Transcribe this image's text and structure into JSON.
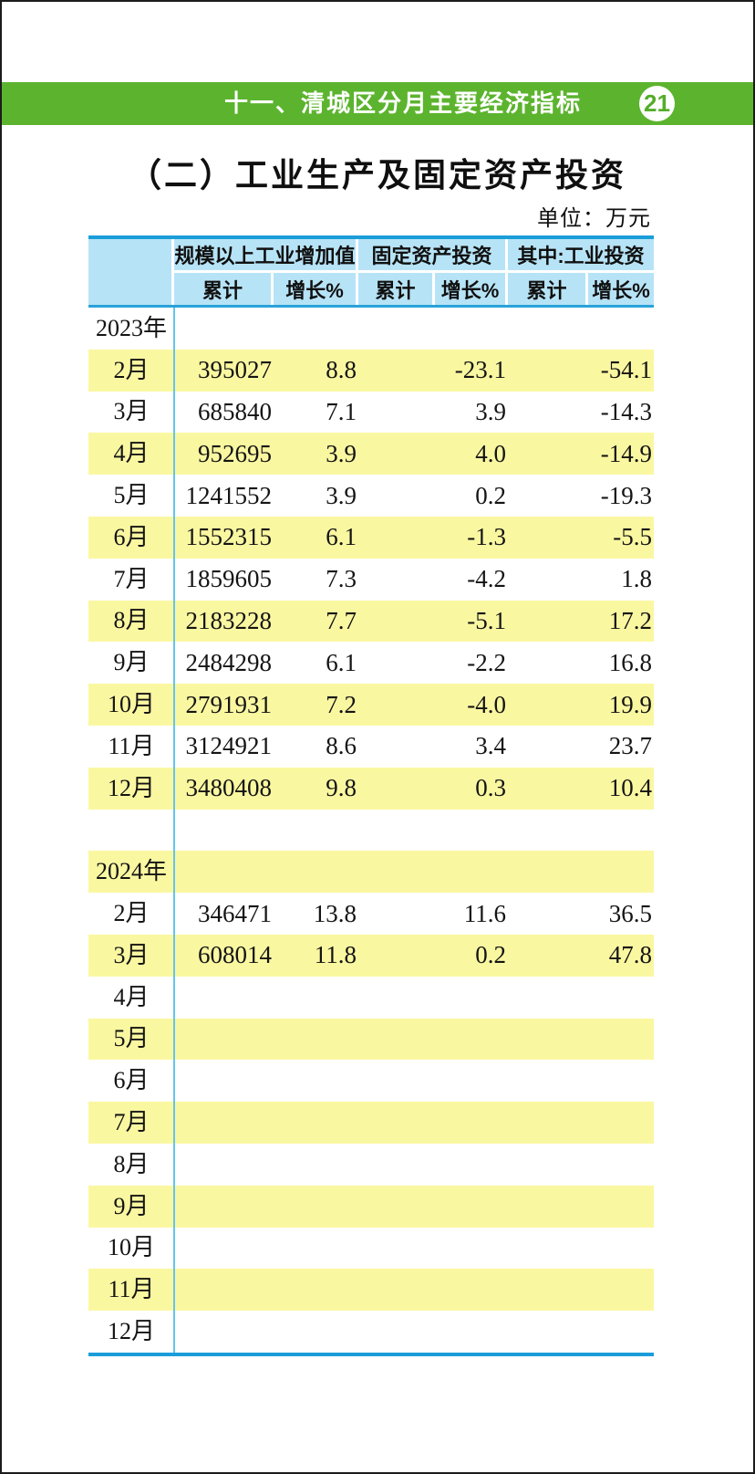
{
  "page": {
    "header_bar": {
      "title": "十一、清城区分月主要经济指标",
      "page_number": "21"
    },
    "section_title": "（二）工业生产及固定资产投资",
    "unit_label": "单位：万元",
    "colors": {
      "band_green": "#5cb42e",
      "header_blue": "#b7e3f6",
      "rule_blue": "#1b9dda",
      "divider_blue": "#63c4ee",
      "stripe_yellow": "#faf7a1"
    }
  },
  "table": {
    "column_groups": [
      {
        "label": "规模以上工业增加值",
        "sub": [
          "累计",
          "增长%"
        ]
      },
      {
        "label": "固定资产投资",
        "sub": [
          "累计",
          "增长%"
        ]
      },
      {
        "label": "其中:工业投资",
        "sub": [
          "累计",
          "增长%"
        ]
      }
    ],
    "rows": [
      {
        "label": "2023年",
        "year": true,
        "stripe": false,
        "values": [
          "",
          "",
          "",
          "",
          "",
          ""
        ]
      },
      {
        "label": "2月",
        "stripe": true,
        "values": [
          "395027",
          "8.8",
          "",
          "-23.1",
          "",
          "-54.1"
        ]
      },
      {
        "label": "3月",
        "stripe": false,
        "values": [
          "685840",
          "7.1",
          "",
          "3.9",
          "",
          "-14.3"
        ]
      },
      {
        "label": "4月",
        "stripe": true,
        "values": [
          "952695",
          "3.9",
          "",
          "4.0",
          "",
          "-14.9"
        ]
      },
      {
        "label": "5月",
        "stripe": false,
        "values": [
          "1241552",
          "3.9",
          "",
          "0.2",
          "",
          "-19.3"
        ]
      },
      {
        "label": "6月",
        "stripe": true,
        "values": [
          "1552315",
          "6.1",
          "",
          "-1.3",
          "",
          "-5.5"
        ]
      },
      {
        "label": "7月",
        "stripe": false,
        "values": [
          "1859605",
          "7.3",
          "",
          "-4.2",
          "",
          "1.8"
        ]
      },
      {
        "label": "8月",
        "stripe": true,
        "values": [
          "2183228",
          "7.7",
          "",
          "-5.1",
          "",
          "17.2"
        ]
      },
      {
        "label": "9月",
        "stripe": false,
        "values": [
          "2484298",
          "6.1",
          "",
          "-2.2",
          "",
          "16.8"
        ]
      },
      {
        "label": "10月",
        "stripe": true,
        "values": [
          "2791931",
          "7.2",
          "",
          "-4.0",
          "",
          "19.9"
        ]
      },
      {
        "label": "11月",
        "stripe": false,
        "values": [
          "3124921",
          "8.6",
          "",
          "3.4",
          "",
          "23.7"
        ]
      },
      {
        "label": "12月",
        "stripe": true,
        "values": [
          "3480408",
          "9.8",
          "",
          "0.3",
          "",
          "10.4"
        ]
      },
      {
        "label": "",
        "stripe": false,
        "values": [
          "",
          "",
          "",
          "",
          "",
          ""
        ]
      },
      {
        "label": "2024年",
        "year": true,
        "stripe": true,
        "values": [
          "",
          "",
          "",
          "",
          "",
          ""
        ]
      },
      {
        "label": "2月",
        "stripe": false,
        "values": [
          "346471",
          "13.8",
          "",
          "11.6",
          "",
          "36.5"
        ]
      },
      {
        "label": "3月",
        "stripe": true,
        "values": [
          "608014",
          "11.8",
          "",
          "0.2",
          "",
          "47.8"
        ]
      },
      {
        "label": "4月",
        "stripe": false,
        "values": [
          "",
          "",
          "",
          "",
          "",
          ""
        ]
      },
      {
        "label": "5月",
        "stripe": true,
        "values": [
          "",
          "",
          "",
          "",
          "",
          ""
        ]
      },
      {
        "label": "6月",
        "stripe": false,
        "values": [
          "",
          "",
          "",
          "",
          "",
          ""
        ]
      },
      {
        "label": "7月",
        "stripe": true,
        "values": [
          "",
          "",
          "",
          "",
          "",
          ""
        ]
      },
      {
        "label": "8月",
        "stripe": false,
        "values": [
          "",
          "",
          "",
          "",
          "",
          ""
        ]
      },
      {
        "label": "9月",
        "stripe": true,
        "values": [
          "",
          "",
          "",
          "",
          "",
          ""
        ]
      },
      {
        "label": "10月",
        "stripe": false,
        "values": [
          "",
          "",
          "",
          "",
          "",
          ""
        ]
      },
      {
        "label": "11月",
        "stripe": true,
        "values": [
          "",
          "",
          "",
          "",
          "",
          ""
        ]
      },
      {
        "label": "12月",
        "stripe": false,
        "values": [
          "",
          "",
          "",
          "",
          "",
          ""
        ]
      }
    ]
  }
}
